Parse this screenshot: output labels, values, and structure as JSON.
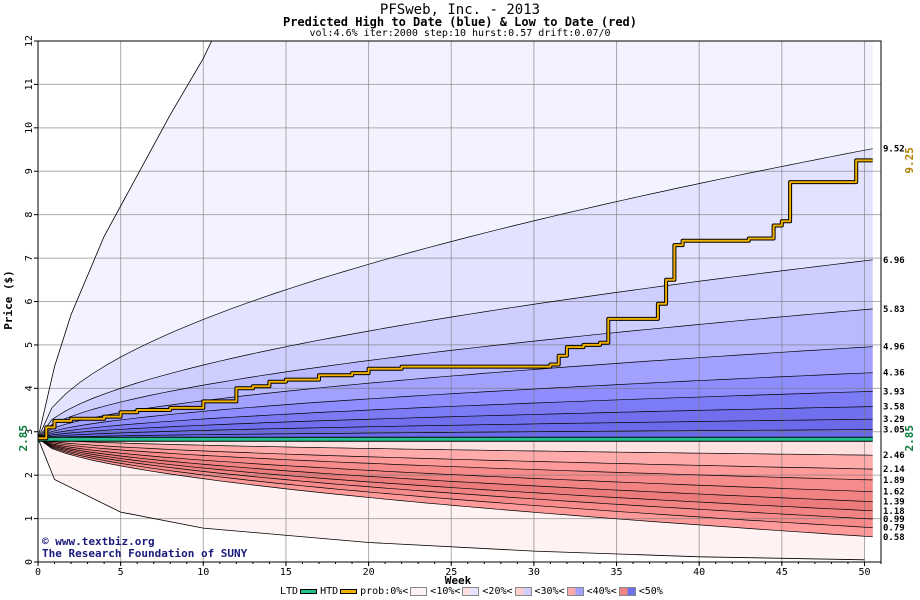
{
  "chart_data": {
    "type": "area",
    "title": "PFSweb, Inc. - 2013",
    "subtitle": "Predicted High to Date (blue) &  Low to Date (red)",
    "params": "vol:4.6% iter:2000 step:10 hurst:0.57 drift:0.07/0",
    "xlabel": "Week",
    "ylabel": "Price ($)",
    "xlim": [
      0,
      51
    ],
    "ylim": [
      0,
      12
    ],
    "x_ticks": [
      0,
      5,
      10,
      15,
      20,
      25,
      30,
      35,
      40,
      45,
      50
    ],
    "y_ticks": [
      0,
      1,
      2,
      3,
      4,
      5,
      6,
      7,
      8,
      9,
      10,
      11,
      12
    ],
    "start_price": 2.85,
    "start_label": "2.85",
    "high_levels": [
      {
        "label": "9.52",
        "end": 9.52
      },
      {
        "label": "6.96",
        "end": 6.96
      },
      {
        "label": "5.83",
        "end": 5.83
      },
      {
        "label": "4.96",
        "end": 4.96
      },
      {
        "label": "4.36",
        "end": 4.36
      },
      {
        "label": "3.93",
        "end": 3.93
      },
      {
        "label": "3.58",
        "end": 3.58
      },
      {
        "label": "3.29",
        "end": 3.29
      },
      {
        "label": "3.05",
        "end": 3.05
      }
    ],
    "low_levels": [
      {
        "label": "2.46",
        "end": 2.46
      },
      {
        "label": "2.14",
        "end": 2.14
      },
      {
        "label": "1.89",
        "end": 1.89
      },
      {
        "label": "1.62",
        "end": 1.62
      },
      {
        "label": "1.39",
        "end": 1.39
      },
      {
        "label": "1.18",
        "end": 1.18
      },
      {
        "label": "0.99",
        "end": 0.99
      },
      {
        "label": "0.79",
        "end": 0.79
      },
      {
        "label": "0.58",
        "end": 0.58
      }
    ],
    "outer_high_path": {
      "x": [
        0,
        1,
        2,
        4,
        6,
        8,
        10,
        10.5
      ],
      "y": [
        2.85,
        4.5,
        5.7,
        7.5,
        8.9,
        10.3,
        11.6,
        12
      ]
    },
    "outer_low_path": {
      "x": [
        0,
        1,
        5,
        10,
        20,
        30,
        40,
        50
      ],
      "y": [
        2.85,
        1.9,
        1.15,
        0.78,
        0.45,
        0.25,
        0.12,
        0.05
      ]
    },
    "htd_actual": {
      "x": [
        0,
        0.5,
        1,
        2,
        3,
        4,
        5,
        6,
        7,
        8,
        9,
        10,
        11,
        12,
        13,
        14,
        15,
        16,
        17,
        18,
        19,
        20,
        21,
        22,
        23,
        24,
        25,
        26,
        27,
        28,
        29,
        30,
        31,
        31.5,
        32,
        33,
        34,
        34.5,
        35,
        36,
        37,
        37.5,
        38,
        38.5,
        39,
        40,
        41,
        42,
        43,
        44,
        44.5,
        45,
        45.5,
        46,
        47,
        48,
        49,
        49.5,
        50,
        50.5
      ],
      "y": [
        2.85,
        3.1,
        3.25,
        3.3,
        3.3,
        3.35,
        3.45,
        3.5,
        3.5,
        3.55,
        3.55,
        3.7,
        3.7,
        4.0,
        4.05,
        4.15,
        4.2,
        4.2,
        4.3,
        4.3,
        4.35,
        4.45,
        4.45,
        4.5,
        4.5,
        4.5,
        4.5,
        4.5,
        4.5,
        4.5,
        4.5,
        4.5,
        4.55,
        4.75,
        4.95,
        5.0,
        5.05,
        5.6,
        5.6,
        5.6,
        5.6,
        5.95,
        6.5,
        7.3,
        7.4,
        7.4,
        7.4,
        7.4,
        7.45,
        7.45,
        7.75,
        7.85,
        8.75,
        8.75,
        8.75,
        8.75,
        8.75,
        9.25,
        9.25,
        9.25
      ]
    },
    "htd_label": "9.25",
    "ltd_actual": {
      "x": [
        0,
        50.5
      ],
      "y": [
        2.85,
        2.85
      ]
    },
    "ltd_label": "2.85",
    "colors": {
      "ltd": "#22c08e",
      "htd": "#f0b000",
      "blue_bands": [
        "#f3f3ff",
        "#e3e3ff",
        "#cfcfff",
        "#b9b9ff",
        "#a1a1ff",
        "#8d8dff",
        "#7b7bf5",
        "#7070ee",
        "#6a6aea"
      ],
      "red_bands": [
        "#fff2f2",
        "#ffe0e0",
        "#ffcfcf",
        "#ffbdbd",
        "#ffabab",
        "#ff9a9a",
        "#f78b8b",
        "#f18383",
        "#ec7c7c"
      ]
    },
    "legend": {
      "ltd": "LTD",
      "htd": "HTD",
      "prob": "prob:0%<",
      "b10": "<10%<",
      "b20": "<20%<",
      "b30": "<30%<",
      "b40": "<40%<",
      "b50": "<50%"
    },
    "watermark": [
      "© www.textbiz.org",
      "The Research Foundation of SUNY"
    ]
  }
}
